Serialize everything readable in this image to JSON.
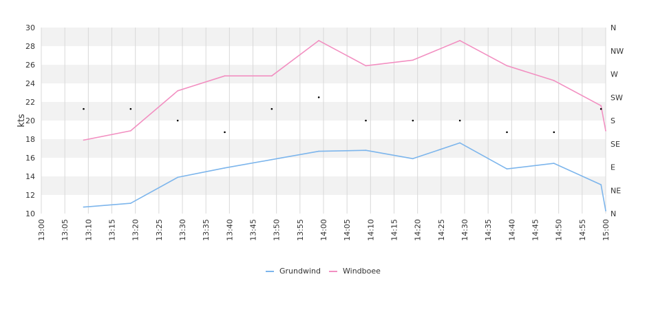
{
  "chart_data": {
    "type": "line",
    "title": "",
    "xlabel": "",
    "ylabel": "kts",
    "ylim": [
      10,
      30
    ],
    "y_ticks": [
      "10",
      "12",
      "14",
      "16",
      "18",
      "20",
      "22",
      "24",
      "26",
      "28",
      "30"
    ],
    "x_ticks": [
      "13:00",
      "13:05",
      "13:10",
      "13:15",
      "13:20",
      "13:25",
      "13:30",
      "13:35",
      "13:40",
      "13:45",
      "13:50",
      "13:55",
      "14:00",
      "14:05",
      "14:10",
      "14:15",
      "14:20",
      "14:25",
      "14:30",
      "14:35",
      "14:40",
      "14:45",
      "14:50",
      "14:55",
      "15:00"
    ],
    "x_range": [
      "13:00",
      "15:00"
    ],
    "y2_ticks": [
      "N",
      "NE",
      "E",
      "SE",
      "S",
      "SW",
      "W",
      "NW",
      "N"
    ],
    "grid": true,
    "legend_position": "bottom",
    "series": [
      {
        "name": "Grundwind",
        "color": "#7cb5ec",
        "points": [
          {
            "x": "13:09",
            "y": 10.7
          },
          {
            "x": "13:19",
            "y": 11.1
          },
          {
            "x": "13:29",
            "y": 13.9
          },
          {
            "x": "13:39",
            "y": 14.9
          },
          {
            "x": "13:49",
            "y": 15.8
          },
          {
            "x": "13:59",
            "y": 16.7
          },
          {
            "x": "14:09",
            "y": 16.8
          },
          {
            "x": "14:19",
            "y": 15.9
          },
          {
            "x": "14:29",
            "y": 17.6
          },
          {
            "x": "14:39",
            "y": 14.8
          },
          {
            "x": "14:49",
            "y": 15.4
          },
          {
            "x": "14:59",
            "y": 13.1
          },
          {
            "x": "15:00",
            "y": 10.3
          }
        ]
      },
      {
        "name": "Windboee",
        "color": "#f28fc1",
        "points": [
          {
            "x": "13:09",
            "y": 17.9
          },
          {
            "x": "13:19",
            "y": 18.9
          },
          {
            "x": "13:29",
            "y": 23.2
          },
          {
            "x": "13:39",
            "y": 24.8
          },
          {
            "x": "13:49",
            "y": 24.8
          },
          {
            "x": "13:59",
            "y": 28.6
          },
          {
            "x": "14:09",
            "y": 25.9
          },
          {
            "x": "14:19",
            "y": 26.5
          },
          {
            "x": "14:29",
            "y": 28.6
          },
          {
            "x": "14:39",
            "y": 25.9
          },
          {
            "x": "14:49",
            "y": 24.3
          },
          {
            "x": "14:59",
            "y": 21.6
          },
          {
            "x": "15:00",
            "y": 18.9
          }
        ]
      }
    ],
    "direction_points": [
      {
        "x": "13:09",
        "dir": "SSW"
      },
      {
        "x": "13:19",
        "dir": "SSW"
      },
      {
        "x": "13:29",
        "dir": "S"
      },
      {
        "x": "13:39",
        "dir": "SSE"
      },
      {
        "x": "13:49",
        "dir": "SSW"
      },
      {
        "x": "13:59",
        "dir": "SW"
      },
      {
        "x": "14:09",
        "dir": "S"
      },
      {
        "x": "14:19",
        "dir": "S"
      },
      {
        "x": "14:29",
        "dir": "S"
      },
      {
        "x": "14:39",
        "dir": "SSE"
      },
      {
        "x": "14:49",
        "dir": "SSE"
      },
      {
        "x": "14:59",
        "dir": "SSW"
      }
    ],
    "direction_scale": [
      "N",
      "NNE",
      "NE",
      "ENE",
      "E",
      "ESE",
      "SE",
      "SSE",
      "S",
      "SSW",
      "SW",
      "WSW",
      "W",
      "WNW",
      "NW",
      "NNW",
      "N"
    ],
    "colors": {
      "band": "#f2f2f2",
      "grid": "#d8d8d8",
      "direction_marker": "#000000"
    }
  }
}
